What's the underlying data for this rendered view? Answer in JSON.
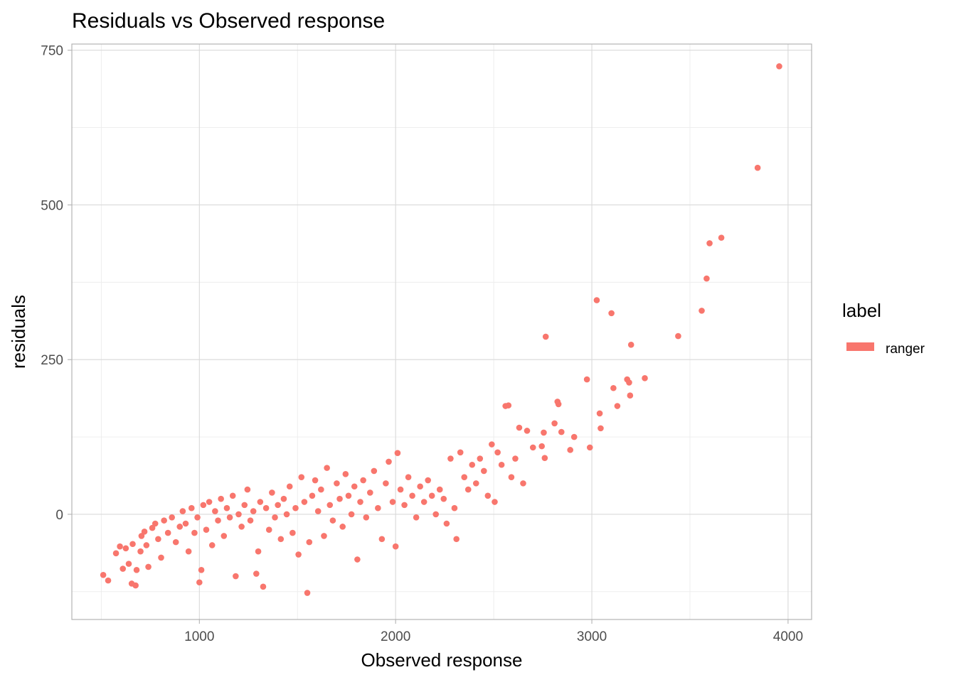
{
  "chart_data": {
    "type": "scatter",
    "title": "Residuals vs Observed response",
    "xlabel": "Observed response",
    "ylabel": "residuals",
    "xlim": [
      350,
      4120
    ],
    "ylim": [
      -170,
      760
    ],
    "x_ticks": [
      1000,
      2000,
      3000,
      4000
    ],
    "y_ticks": [
      0,
      250,
      500,
      750
    ],
    "x_minor": [
      500,
      1500,
      2500,
      3500
    ],
    "y_minor": [
      -125,
      125,
      375,
      625
    ],
    "grid": true,
    "legend": {
      "title": "label",
      "placement": "right",
      "entries": [
        {
          "name": "ranger",
          "color": "#f8766d"
        }
      ]
    },
    "series": [
      {
        "name": "ranger",
        "color": "#f8766d",
        "points": [
          [
            510,
            -98
          ],
          [
            535,
            -107
          ],
          [
            575,
            -63
          ],
          [
            595,
            -52
          ],
          [
            610,
            -88
          ],
          [
            625,
            -55
          ],
          [
            640,
            -80
          ],
          [
            655,
            -112
          ],
          [
            660,
            -48
          ],
          [
            675,
            -115
          ],
          [
            680,
            -90
          ],
          [
            700,
            -60
          ],
          [
            705,
            -35
          ],
          [
            720,
            -28
          ],
          [
            730,
            -50
          ],
          [
            740,
            -85
          ],
          [
            760,
            -22
          ],
          [
            775,
            -15
          ],
          [
            790,
            -40
          ],
          [
            805,
            -70
          ],
          [
            820,
            -10
          ],
          [
            840,
            -30
          ],
          [
            860,
            -5
          ],
          [
            880,
            -45
          ],
          [
            900,
            -20
          ],
          [
            915,
            5
          ],
          [
            930,
            -15
          ],
          [
            945,
            -60
          ],
          [
            960,
            10
          ],
          [
            975,
            -30
          ],
          [
            990,
            -5
          ],
          [
            1000,
            -110
          ],
          [
            1010,
            -90
          ],
          [
            1020,
            15
          ],
          [
            1035,
            -25
          ],
          [
            1050,
            20
          ],
          [
            1065,
            -50
          ],
          [
            1080,
            5
          ],
          [
            1095,
            -10
          ],
          [
            1110,
            25
          ],
          [
            1125,
            -35
          ],
          [
            1140,
            10
          ],
          [
            1155,
            -5
          ],
          [
            1170,
            30
          ],
          [
            1185,
            -100
          ],
          [
            1200,
            0
          ],
          [
            1215,
            -20
          ],
          [
            1230,
            15
          ],
          [
            1245,
            40
          ],
          [
            1260,
            -10
          ],
          [
            1275,
            5
          ],
          [
            1290,
            -96
          ],
          [
            1300,
            -60
          ],
          [
            1310,
            20
          ],
          [
            1325,
            -117
          ],
          [
            1340,
            10
          ],
          [
            1355,
            -25
          ],
          [
            1370,
            35
          ],
          [
            1385,
            -5
          ],
          [
            1400,
            15
          ],
          [
            1415,
            -40
          ],
          [
            1430,
            25
          ],
          [
            1445,
            0
          ],
          [
            1460,
            45
          ],
          [
            1475,
            -30
          ],
          [
            1490,
            10
          ],
          [
            1505,
            -65
          ],
          [
            1520,
            60
          ],
          [
            1535,
            20
          ],
          [
            1550,
            -127
          ],
          [
            1560,
            -45
          ],
          [
            1575,
            30
          ],
          [
            1590,
            55
          ],
          [
            1605,
            5
          ],
          [
            1620,
            40
          ],
          [
            1635,
            -35
          ],
          [
            1650,
            75
          ],
          [
            1665,
            15
          ],
          [
            1680,
            -10
          ],
          [
            1700,
            50
          ],
          [
            1715,
            25
          ],
          [
            1730,
            -20
          ],
          [
            1745,
            65
          ],
          [
            1760,
            30
          ],
          [
            1775,
            0
          ],
          [
            1790,
            45
          ],
          [
            1805,
            -73
          ],
          [
            1820,
            20
          ],
          [
            1835,
            55
          ],
          [
            1850,
            -5
          ],
          [
            1870,
            35
          ],
          [
            1890,
            70
          ],
          [
            1910,
            10
          ],
          [
            1930,
            -40
          ],
          [
            1950,
            50
          ],
          [
            1965,
            85
          ],
          [
            1985,
            20
          ],
          [
            2000,
            -52
          ],
          [
            2010,
            99
          ],
          [
            2025,
            40
          ],
          [
            2045,
            15
          ],
          [
            2065,
            60
          ],
          [
            2085,
            30
          ],
          [
            2105,
            -5
          ],
          [
            2125,
            45
          ],
          [
            2145,
            20
          ],
          [
            2165,
            55
          ],
          [
            2185,
            30
          ],
          [
            2205,
            0
          ],
          [
            2225,
            40
          ],
          [
            2245,
            25
          ],
          [
            2260,
            -15
          ],
          [
            2280,
            90
          ],
          [
            2300,
            10
          ],
          [
            2310,
            -40
          ],
          [
            2330,
            100
          ],
          [
            2350,
            60
          ],
          [
            2370,
            40
          ],
          [
            2390,
            80
          ],
          [
            2410,
            50
          ],
          [
            2430,
            90
          ],
          [
            2450,
            70
          ],
          [
            2470,
            30
          ],
          [
            2490,
            113
          ],
          [
            2505,
            20
          ],
          [
            2520,
            100
          ],
          [
            2540,
            80
          ],
          [
            2560,
            175
          ],
          [
            2575,
            176
          ],
          [
            2590,
            60
          ],
          [
            2610,
            90
          ],
          [
            2630,
            140
          ],
          [
            2650,
            50
          ],
          [
            2670,
            135
          ],
          [
            2700,
            108
          ],
          [
            2745,
            110
          ],
          [
            2755,
            132
          ],
          [
            2760,
            91
          ],
          [
            2765,
            287
          ],
          [
            2810,
            147
          ],
          [
            2825,
            182
          ],
          [
            2830,
            178
          ],
          [
            2845,
            133
          ],
          [
            2890,
            104
          ],
          [
            2910,
            125
          ],
          [
            2975,
            218
          ],
          [
            2990,
            108
          ],
          [
            3025,
            346
          ],
          [
            3040,
            163
          ],
          [
            3045,
            139
          ],
          [
            3100,
            325
          ],
          [
            3110,
            204
          ],
          [
            3130,
            175
          ],
          [
            3180,
            218
          ],
          [
            3190,
            213
          ],
          [
            3195,
            192
          ],
          [
            3200,
            274
          ],
          [
            3270,
            220
          ],
          [
            3440,
            288
          ],
          [
            3560,
            329
          ],
          [
            3585,
            381
          ],
          [
            3600,
            438
          ],
          [
            3660,
            447
          ],
          [
            3845,
            560
          ],
          [
            3955,
            724
          ]
        ]
      }
    ]
  }
}
